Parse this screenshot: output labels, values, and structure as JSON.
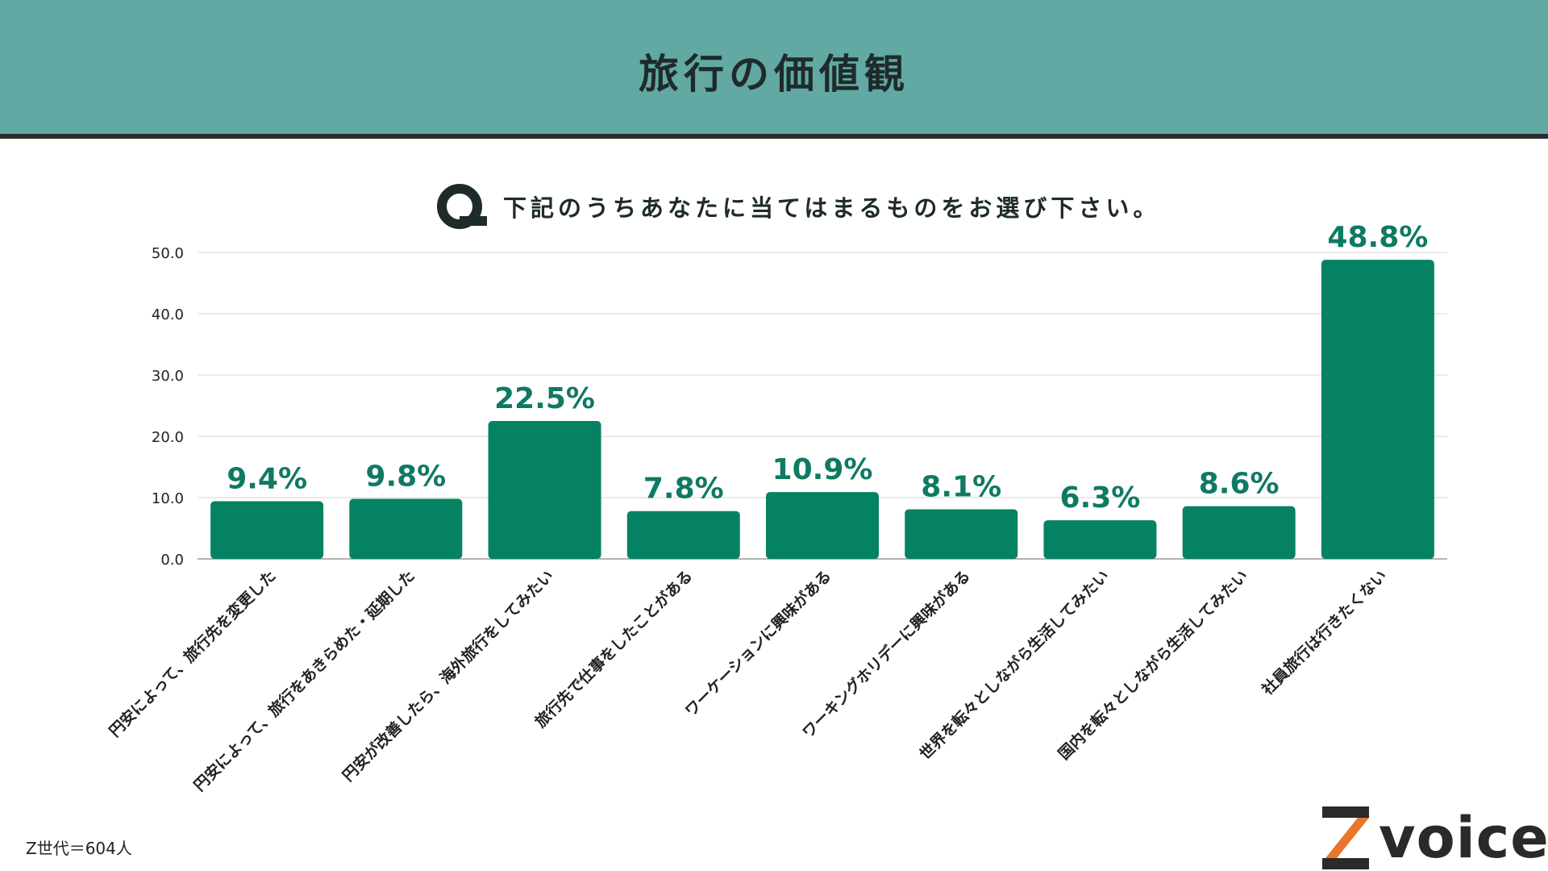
{
  "header": {
    "title": "旅行の価値観",
    "bg_color": "#62a9a3"
  },
  "question": {
    "icon_letter": "Q",
    "text": "下記のうちあなたに当てはまるものをお選び下さい。"
  },
  "chart_data": {
    "type": "bar",
    "title": "",
    "xlabel": "",
    "ylabel": "",
    "ylim": [
      0,
      50
    ],
    "yticks": [
      "0.0",
      "10.0",
      "20.0",
      "30.0",
      "40.0",
      "50.0"
    ],
    "grid": true,
    "bar_color": "#058262",
    "label_color": "#0f7a63",
    "categories": [
      "円安によって、旅行先を変更した",
      "円安によって、旅行をあきらめた・延期した",
      "円安が改善したら、海外旅行をしてみたい",
      "旅行先で仕事をしたことがある",
      "ワーケーションに興味がある",
      "ワーキングホリデーに興味がある",
      "世界を転々としながら生活してみたい",
      "国内を転々としながら生活してみたい",
      "社員旅行は行きたくない"
    ],
    "values": [
      9.4,
      9.8,
      22.5,
      7.8,
      10.9,
      8.1,
      6.3,
      8.6,
      48.8
    ],
    "data_labels": [
      "9.4%",
      "9.8%",
      "22.5%",
      "7.8%",
      "10.9%",
      "8.1%",
      "6.3%",
      "8.6%",
      "48.8%"
    ]
  },
  "note": "Z世代＝604人",
  "logo": {
    "text": "voice",
    "brand": "Z voice",
    "accent": "#e8762b",
    "dark": "#2a2a2a"
  }
}
